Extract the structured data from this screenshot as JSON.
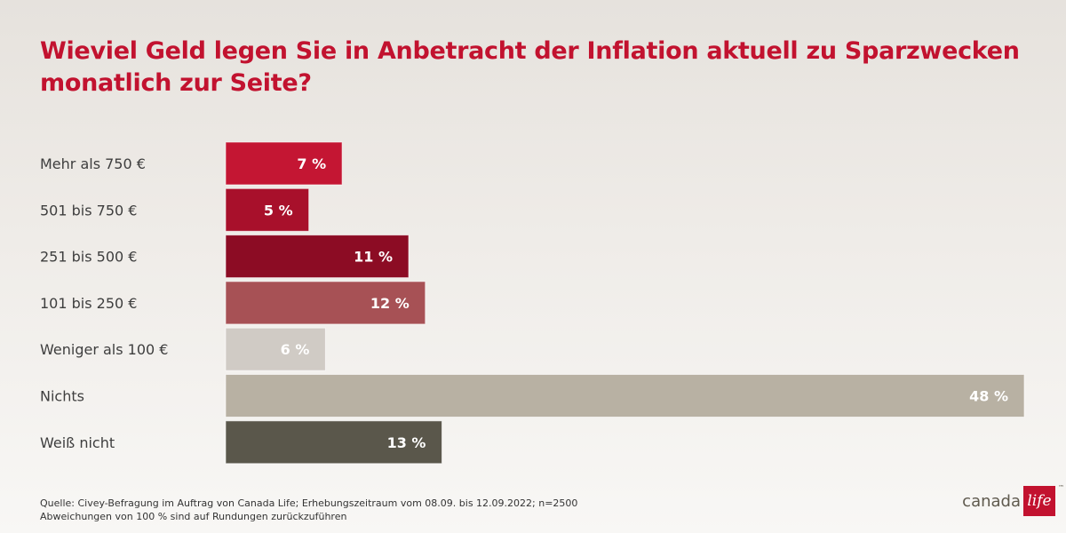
{
  "chart_data": {
    "type": "bar",
    "orientation": "horizontal",
    "title": "Wieviel Geld legen Sie in Anbetracht der Inflation aktuell zu Sparzwecken monatlich zur Seite?",
    "categories": [
      "Mehr als 750 €",
      "501 bis 750 €",
      "251 bis 500 €",
      "101 bis 250 €",
      "Weniger als 100 €",
      "Nichts",
      "Weiß nicht"
    ],
    "values": [
      7,
      5,
      11,
      12,
      6,
      48,
      13
    ],
    "value_labels": [
      "7 %",
      "5 %",
      "11 %",
      "12 %",
      "6 %",
      "48 %",
      "13 %"
    ],
    "colors": [
      "#c41633",
      "#a8102b",
      "#8c0c24",
      "#a75155",
      "#d0cbc5",
      "#b8b1a3",
      "#5a574b"
    ],
    "xlim": [
      0,
      48
    ],
    "grid": false,
    "legend": "none"
  },
  "footer": {
    "source": "Quelle: Civey-Befragung im Auftrag von Canada Life; Erhebungszeitraum vom 08.09. bis 12.09.2022; n=2500",
    "note": "Abweichungen von 100 % sind auf Rundungen zurückzuführen"
  },
  "logo": {
    "word": "canada",
    "mark": "life",
    "tm": "™",
    "color": "#c2122f"
  }
}
